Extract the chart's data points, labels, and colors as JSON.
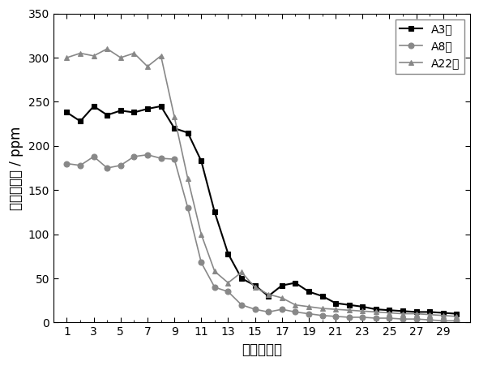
{
  "title": "",
  "xlabel": "时间（天）",
  "ylabel": "硫化氢含量 / ppm",
  "xlim": [
    0,
    31
  ],
  "ylim": [
    0,
    350
  ],
  "yticks": [
    0,
    50,
    100,
    150,
    200,
    250,
    300,
    350
  ],
  "xticks": [
    1,
    3,
    5,
    7,
    9,
    11,
    13,
    15,
    17,
    19,
    21,
    23,
    25,
    27,
    29
  ],
  "series": [
    {
      "label": "A3井",
      "color": "#000000",
      "marker": "s",
      "x": [
        1,
        2,
        3,
        4,
        5,
        6,
        7,
        8,
        9,
        10,
        11,
        12,
        13,
        14,
        15,
        16,
        17,
        18,
        19,
        20,
        21,
        22,
        23,
        24,
        25,
        26,
        27,
        28,
        29,
        30
      ],
      "y": [
        238,
        228,
        245,
        235,
        240,
        238,
        242,
        245,
        220,
        215,
        183,
        125,
        78,
        50,
        42,
        30,
        42,
        45,
        35,
        30,
        22,
        20,
        18,
        15,
        14,
        13,
        12,
        12,
        11,
        10
      ]
    },
    {
      "label": "A8井",
      "color": "#888888",
      "marker": "o",
      "x": [
        1,
        2,
        3,
        4,
        5,
        6,
        7,
        8,
        9,
        10,
        11,
        12,
        13,
        14,
        15,
        16,
        17,
        18,
        19,
        20,
        21,
        22,
        23,
        24,
        25,
        26,
        27,
        28,
        29,
        30
      ],
      "y": [
        180,
        178,
        188,
        175,
        178,
        188,
        190,
        186,
        185,
        130,
        68,
        40,
        35,
        20,
        15,
        12,
        15,
        12,
        10,
        8,
        7,
        6,
        6,
        5,
        5,
        4,
        4,
        3,
        2,
        2
      ]
    },
    {
      "label": "A22井",
      "color": "#888888",
      "marker": "^",
      "x": [
        1,
        2,
        3,
        4,
        5,
        6,
        7,
        8,
        9,
        10,
        11,
        12,
        13,
        14,
        15,
        16,
        17,
        18,
        19,
        20,
        21,
        22,
        23,
        24,
        25,
        26,
        27,
        28,
        29,
        30
      ],
      "y": [
        300,
        305,
        302,
        310,
        300,
        305,
        290,
        302,
        233,
        163,
        100,
        58,
        45,
        57,
        40,
        32,
        28,
        20,
        18,
        16,
        15,
        14,
        13,
        12,
        11,
        10,
        10,
        9,
        8,
        7
      ]
    }
  ],
  "legend_loc": "upper right",
  "background_color": "#ffffff",
  "line_width": 1.2,
  "marker_size": 5,
  "a3_line_color": "#000000",
  "a8_line_color": "#888888",
  "a22_line_color": "#888888"
}
